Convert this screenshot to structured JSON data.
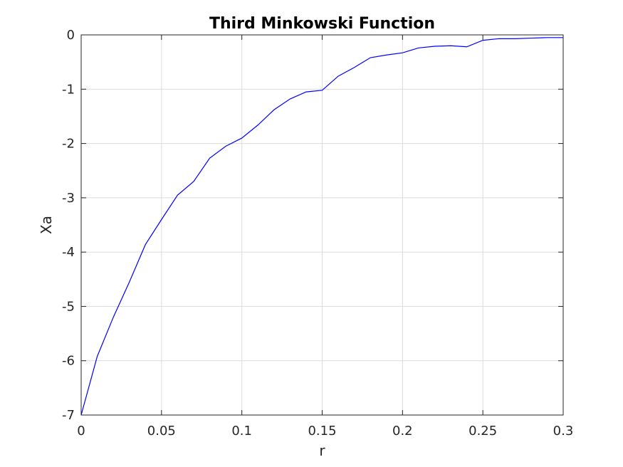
{
  "chart_data": {
    "type": "line",
    "title": "Third Minkowski Function",
    "xlabel": "r",
    "ylabel": "Xa",
    "xlim": [
      0,
      0.3
    ],
    "ylim": [
      -7,
      0
    ],
    "xticks": [
      0,
      0.05,
      0.1,
      0.15,
      0.2,
      0.25,
      0.3
    ],
    "xtick_labels": [
      "0",
      "0.05",
      "0.1",
      "0.15",
      "0.2",
      "0.25",
      "0.3"
    ],
    "yticks": [
      0,
      -1,
      -2,
      -3,
      -4,
      -5,
      -6,
      -7
    ],
    "ytick_labels": [
      "0",
      "-1",
      "-2",
      "-3",
      "-4",
      "-5",
      "-6",
      "-7"
    ],
    "grid": true,
    "series": [
      {
        "color": "#0000ff",
        "x": [
          0,
          0.01,
          0.02,
          0.03,
          0.04,
          0.05,
          0.06,
          0.07,
          0.08,
          0.09,
          0.1,
          0.11,
          0.12,
          0.13,
          0.14,
          0.15,
          0.16,
          0.17,
          0.18,
          0.19,
          0.2,
          0.21,
          0.22,
          0.23,
          0.24,
          0.25,
          0.26,
          0.27,
          0.28,
          0.29,
          0.3
        ],
        "y": [
          -7.0,
          -5.92,
          -5.2,
          -4.55,
          -3.86,
          -3.4,
          -2.95,
          -2.7,
          -2.27,
          -2.05,
          -1.9,
          -1.66,
          -1.38,
          -1.18,
          -1.05,
          -1.02,
          -0.76,
          -0.6,
          -0.42,
          -0.37,
          -0.33,
          -0.24,
          -0.21,
          -0.2,
          -0.22,
          -0.1,
          -0.07,
          -0.07,
          -0.06,
          -0.05,
          -0.05
        ]
      }
    ]
  }
}
